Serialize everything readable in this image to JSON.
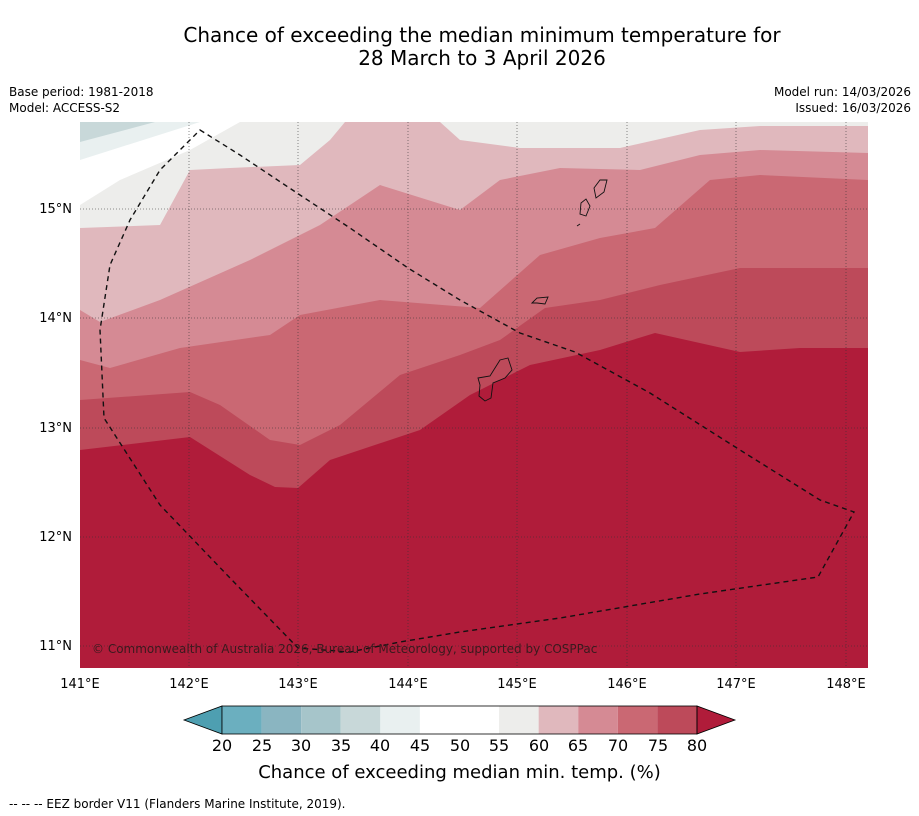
{
  "title": {
    "line1": "Chance of exceeding the median minimum temperature for",
    "line2": "28 March to 3 April 2026"
  },
  "info": {
    "base_period": "Base period: 1981-2018",
    "model": "Model: ACCESS-S2",
    "model_run": "Model run: 14/03/2026",
    "issued": "Issued: 16/03/2026"
  },
  "map": {
    "lon_range": [
      141,
      148.2
    ],
    "lat_range": [
      10.8,
      15.8
    ],
    "lon_ticks": [
      "141°E",
      "142°E",
      "143°E",
      "144°E",
      "145°E",
      "146°E",
      "147°E",
      "148°E"
    ],
    "lat_ticks": [
      "15°N",
      "14°N",
      "13°N",
      "12°N",
      "11°N"
    ],
    "copyright": "© Commonwealth of Australia 2026, Bureau of Meteorology, supported by COSPPac"
  },
  "legend": {
    "labels": [
      "20",
      "25",
      "30",
      "35",
      "40",
      "45",
      "50",
      "55",
      "60",
      "65",
      "70",
      "75",
      "80"
    ],
    "colors": [
      "#4e9fb1",
      "#6bafbf",
      "#8ab5c1",
      "#a6c5ca",
      "#c8d8d9",
      "#e9f0f0",
      "#ffffff",
      "#ffffff",
      "#ededeb",
      "#e0b8bd",
      "#d58a94",
      "#ca6873",
      "#bd4a5a",
      "#b01c3a"
    ],
    "title": "Chance of exceeding median min. temp. (%)"
  },
  "footnote": "--  --  -- EEZ border V11 (Flanders Marine Institute, 2019)."
}
